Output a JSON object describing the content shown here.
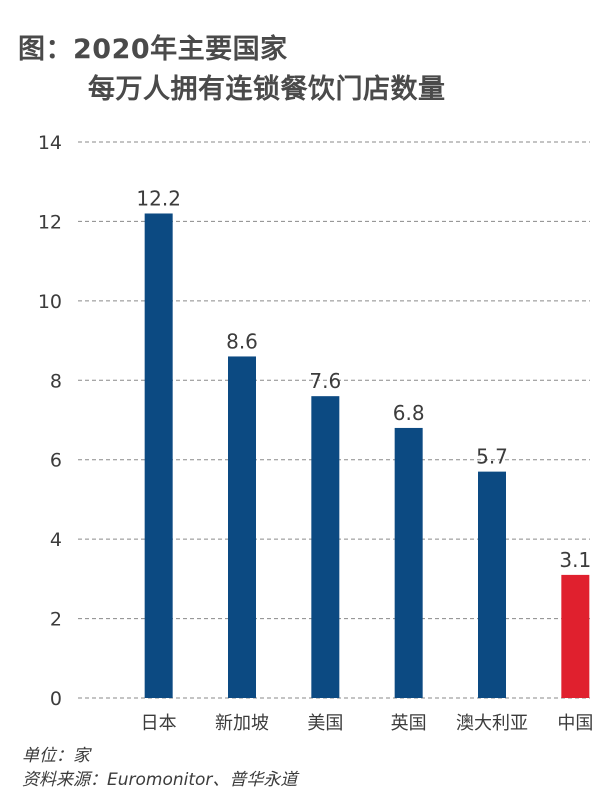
{
  "title": {
    "line1": "图：2020年主要国家",
    "line2": "每万人拥有连锁餐饮门店数量"
  },
  "chart_data": {
    "type": "bar",
    "categories": [
      "日本",
      "新加坡",
      "美国",
      "英国",
      "澳大利亚",
      "中国"
    ],
    "values": [
      12.2,
      8.6,
      7.6,
      6.8,
      5.7,
      3.1
    ],
    "value_labels": [
      "12.2",
      "8.6",
      "7.6",
      "6.8",
      "5.7",
      "3.1"
    ],
    "title": "图：2020年主要国家每万人拥有连锁餐饮门店数量",
    "xlabel": "",
    "ylabel": "",
    "ylim": [
      0,
      14
    ],
    "yticks": [
      0,
      2,
      4,
      6,
      8,
      10,
      12,
      14
    ],
    "grid": "horizontal-dashed",
    "colors": {
      "default_bar": "#0c4a82",
      "highlight_bar": "#e0202e",
      "grid": "#8a8a8a",
      "text": "#3c3c3c"
    },
    "highlight_category": "中国"
  },
  "footer": {
    "unit": "单位：家",
    "source": "资料来源：Euromonitor、普华永道"
  }
}
